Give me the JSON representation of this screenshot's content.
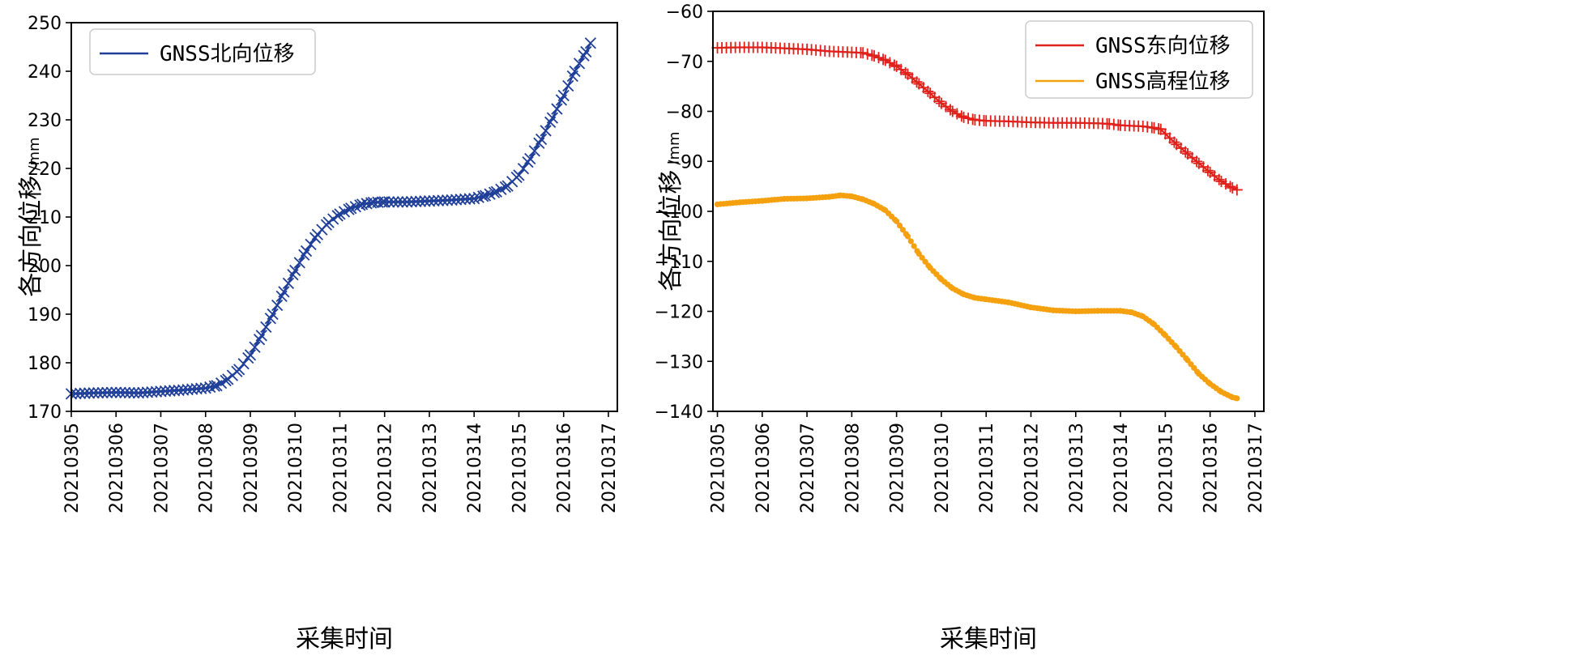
{
  "chart_data": [
    {
      "type": "line",
      "xlabel": "采集时间",
      "ylabel": "各方向位移",
      "yunit": "/mm",
      "x_ticks": [
        "20210305",
        "20210306",
        "20210307",
        "20210308",
        "20210309",
        "20210310",
        "20210311",
        "20210312",
        "20210313",
        "20210314",
        "20210315",
        "20210316",
        "20210317"
      ],
      "xlim": [
        "2021-03-05",
        "2021-03-17"
      ],
      "ylim": [
        170,
        250
      ],
      "y_ticks": [
        170,
        180,
        190,
        200,
        210,
        220,
        230,
        240,
        250
      ],
      "legend_position": "upper-left",
      "series": [
        {
          "name": "GNSS北向位移",
          "color": "#1f3f98",
          "marker": "x",
          "x": [
            5.0,
            5.5,
            6.0,
            6.5,
            7.0,
            7.5,
            8.0,
            8.25,
            8.5,
            8.75,
            9.0,
            9.25,
            9.5,
            9.75,
            10.0,
            10.25,
            10.5,
            10.75,
            11.0,
            11.25,
            11.5,
            11.75,
            12.0,
            12.5,
            13.0,
            13.5,
            14.0,
            14.25,
            14.5,
            14.75,
            15.0,
            15.25,
            15.5,
            15.75,
            16.0,
            16.25,
            16.5,
            16.6
          ],
          "values": [
            173.6,
            173.8,
            173.9,
            173.8,
            174.1,
            174.4,
            174.8,
            175.3,
            176.6,
            178.6,
            181.6,
            185.6,
            190.0,
            194.6,
            199.0,
            203.0,
            206.4,
            208.9,
            210.6,
            211.8,
            212.6,
            213.0,
            213.1,
            213.1,
            213.3,
            213.5,
            213.8,
            214.4,
            215.2,
            216.4,
            218.6,
            222.0,
            226.0,
            230.4,
            235.0,
            240.0,
            244.0,
            245.8
          ]
        }
      ]
    },
    {
      "type": "line",
      "xlabel": "采集时间",
      "ylabel": "各方向位移",
      "yunit": "/mm",
      "x_ticks": [
        "20210305",
        "20210306",
        "20210307",
        "20210308",
        "20210309",
        "20210310",
        "20210311",
        "20210312",
        "20210313",
        "20210314",
        "20210315",
        "20210316",
        "20210317"
      ],
      "xlim": [
        "2021-03-05",
        "2021-03-17"
      ],
      "ylim": [
        -140,
        -60
      ],
      "y_ticks": [
        -140,
        -130,
        -120,
        -110,
        -100,
        -90,
        -80,
        -70,
        -60
      ],
      "legend_position": "upper-right",
      "series": [
        {
          "name": "GNSS东向位移",
          "color": "#e0201b",
          "marker": "+",
          "x": [
            5.0,
            5.5,
            6.0,
            6.5,
            7.0,
            7.5,
            8.0,
            8.25,
            8.5,
            8.75,
            9.0,
            9.25,
            9.5,
            9.75,
            10.0,
            10.25,
            10.5,
            10.75,
            11.0,
            11.5,
            12.0,
            12.5,
            13.0,
            13.5,
            13.75,
            14.0,
            14.5,
            14.75,
            14.9,
            15.0,
            15.25,
            15.5,
            15.75,
            16.0,
            16.25,
            16.5,
            16.6
          ],
          "values": [
            -67.3,
            -67.2,
            -67.2,
            -67.4,
            -67.6,
            -68.0,
            -68.2,
            -68.3,
            -68.9,
            -69.8,
            -71.0,
            -72.6,
            -74.5,
            -76.4,
            -78.4,
            -80.0,
            -81.2,
            -81.7,
            -81.9,
            -82.0,
            -82.2,
            -82.3,
            -82.3,
            -82.4,
            -82.5,
            -82.8,
            -83.0,
            -83.3,
            -83.6,
            -84.5,
            -86.6,
            -88.5,
            -90.4,
            -92.2,
            -94.0,
            -95.3,
            -95.7
          ]
        },
        {
          "name": "GNSS高程位移",
          "color": "#f5a10f",
          "marker": "o",
          "x": [
            5.0,
            5.5,
            6.0,
            6.5,
            7.0,
            7.5,
            7.75,
            8.0,
            8.25,
            8.5,
            8.75,
            9.0,
            9.25,
            9.5,
            9.75,
            10.0,
            10.25,
            10.5,
            10.75,
            11.0,
            11.5,
            12.0,
            12.5,
            13.0,
            13.5,
            14.0,
            14.25,
            14.5,
            14.75,
            15.0,
            15.25,
            15.5,
            15.75,
            16.0,
            16.25,
            16.5,
            16.6
          ],
          "values": [
            -98.6,
            -98.2,
            -97.9,
            -97.5,
            -97.4,
            -97.1,
            -96.8,
            -97.0,
            -97.6,
            -98.5,
            -99.8,
            -102.0,
            -105.0,
            -108.5,
            -111.3,
            -113.6,
            -115.4,
            -116.6,
            -117.3,
            -117.6,
            -118.2,
            -119.2,
            -119.8,
            -120.0,
            -119.9,
            -119.9,
            -120.2,
            -121.0,
            -122.6,
            -124.8,
            -127.2,
            -129.8,
            -132.5,
            -134.5,
            -136.1,
            -137.2,
            -137.4
          ]
        }
      ]
    }
  ]
}
